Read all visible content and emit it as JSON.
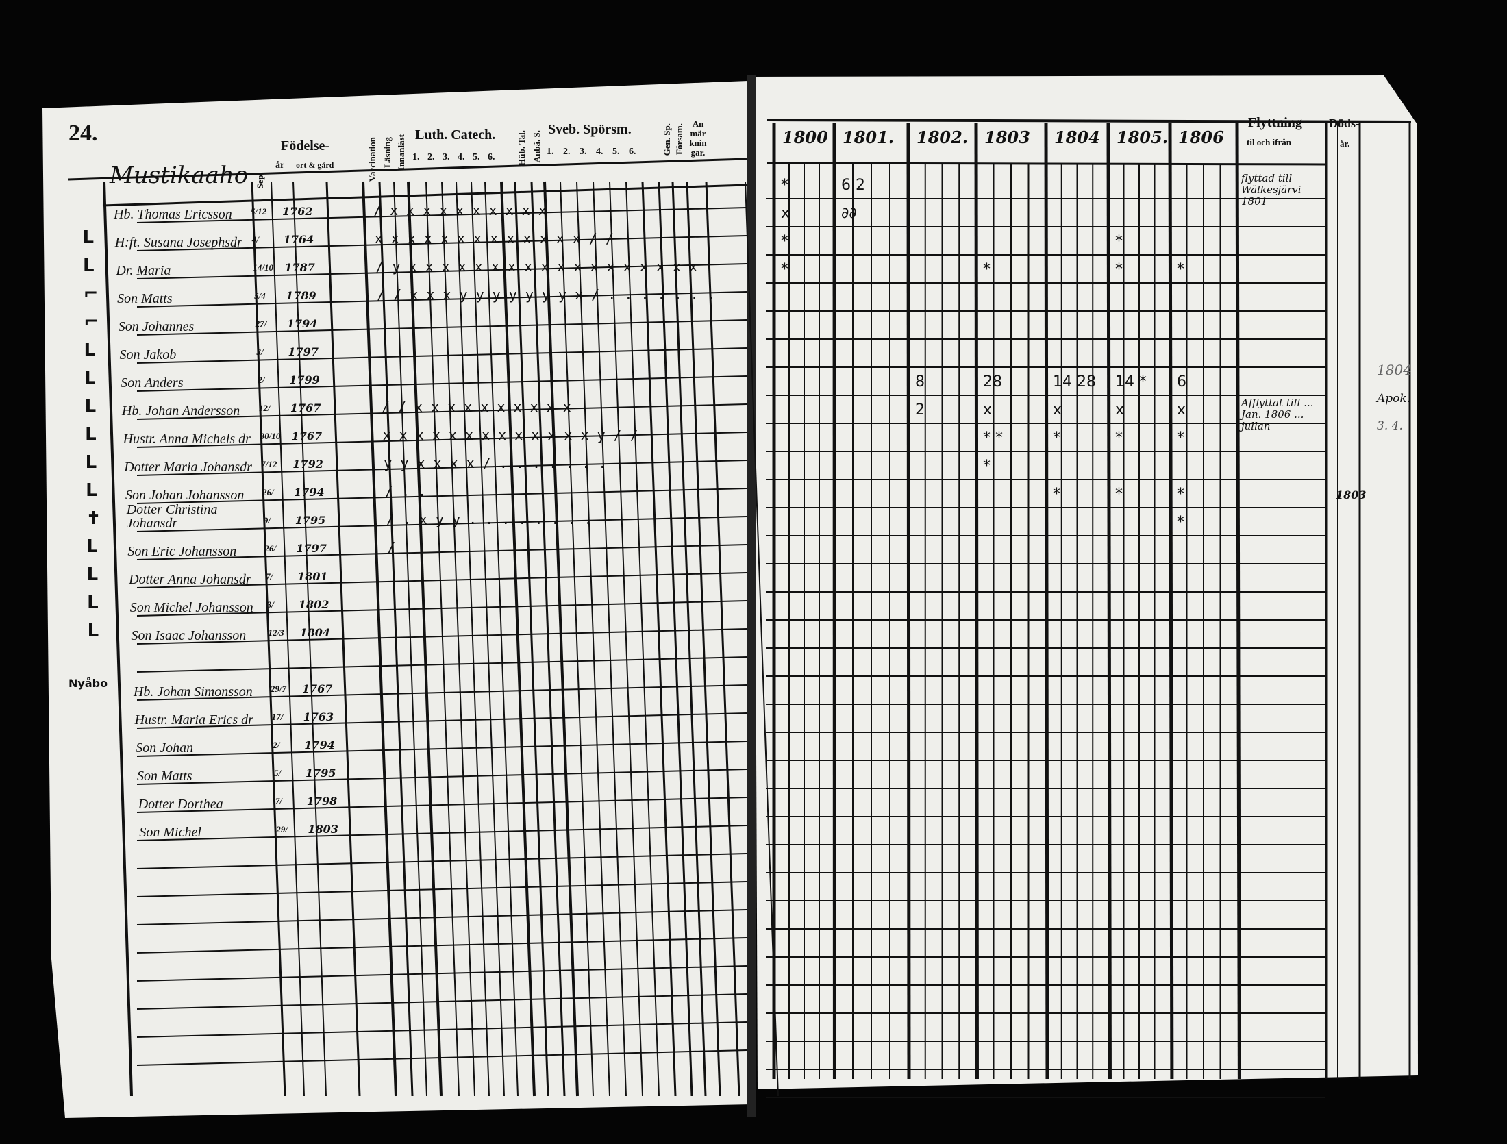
{
  "left_page": {
    "page_number": "24.",
    "farm_name": "Mustikaaho",
    "headers": {
      "birth": "Födelse-",
      "year": "år",
      "place": "ort & gård",
      "sep": "Sep.",
      "vertical": [
        "Vaccination",
        "Läsning",
        "Innanläst"
      ],
      "luth_catech": "Luth. Catech.",
      "luth_numbers": [
        "1.",
        "2.",
        "3.",
        "4.",
        "5.",
        "6."
      ],
      "vertical_mid": [
        "Hüb. Tal.",
        "Anbä. S."
      ],
      "sveb_sporsm": "Sveb. Spörsm.",
      "sveb_numbers": [
        "1.",
        "2.",
        "3.",
        "4.",
        "5.",
        "6."
      ],
      "vertical_end": [
        "Gen. Sp.",
        "Försam."
      ],
      "remarks": "Anmärkningar."
    },
    "rows": [
      {
        "row": 0,
        "margin": "",
        "name": "Hb. Thomas Ericsson",
        "day": "5/12",
        "year": "1762",
        "marks": "/ x x x x x x x x x x"
      },
      {
        "row": 1,
        "margin": "L",
        "name": "H:ft. Susana Josephsdr",
        "day": "4/",
        "year": "1764",
        "marks": "x x x x x x x x x x x x x / /"
      },
      {
        "row": 2,
        "margin": "L",
        "name": "Dr. Maria",
        "day": "14/10",
        "year": "1787",
        "marks": "/ y x x x x x x x x x x x x x x x x x x"
      },
      {
        "row": 3,
        "margin": "⌐",
        "name": "Son Matts",
        "day": "5/4",
        "year": "1789",
        "marks": "/ / x x x y y y y y y y x / . . . . . . ."
      },
      {
        "row": 4,
        "margin": "⌐",
        "name": "Son Johannes",
        "day": "27/",
        "year": "1794",
        "marks": ""
      },
      {
        "row": 5,
        "margin": "L",
        "name": "Son Jakob",
        "day": "3/",
        "year": "1797",
        "marks": ""
      },
      {
        "row": 6,
        "margin": "L",
        "name": "Son Anders",
        "day": "2/",
        "year": "1799",
        "marks": ""
      },
      {
        "row": 7,
        "margin": "L",
        "name": "Hb. Johan Andersson",
        "day": "12/",
        "year": "1767",
        "marks": "/ / x x x x x x x x x x"
      },
      {
        "row": 8,
        "margin": "L",
        "name": "Hustr. Anna Michels dr",
        "day": "30/10",
        "year": "1767",
        "marks": "x x x x x x x x x x x x x y / /"
      },
      {
        "row": 9,
        "margin": "L",
        "name": "Dotter Maria Johansdr",
        "day": "7/12",
        "year": "1792",
        "marks": "y y x x x x / . . . . . . ."
      },
      {
        "row": 10,
        "margin": "L",
        "name": "Son Johan Johansson",
        "day": "26/",
        "year": "1794",
        "marks": "/ . ."
      },
      {
        "row": 11,
        "margin": "✝",
        "name": "Dotter Christina Johansdr",
        "day": "9/",
        "year": "1795",
        "marks": "/ .   x y y . . . . . . . ."
      },
      {
        "row": 12,
        "margin": "L",
        "name": "Son Eric Johansson",
        "day": "26/",
        "year": "1797",
        "marks": "/"
      },
      {
        "row": 13,
        "margin": "L",
        "name": "Dotter Anna Johansdr",
        "day": "7/",
        "year": "1801",
        "marks": ""
      },
      {
        "row": 14,
        "margin": "L",
        "name": "Son Michel Johansson",
        "day": "3/",
        "year": "1802",
        "marks": ""
      },
      {
        "row": 15,
        "margin": "L",
        "name": "Son Isaac Johansson",
        "day": "12/3",
        "year": "1804",
        "marks": ""
      },
      {
        "row": 17,
        "margin": "Nyåbo",
        "name": "Hb. Johan Simonsson",
        "day": "29/7",
        "year": "1767",
        "marks": ""
      },
      {
        "row": 18,
        "margin": "",
        "name": "Hustr. Maria Erics dr",
        "day": "17/",
        "year": "1763",
        "marks": ""
      },
      {
        "row": 19,
        "margin": "",
        "name": "Son Johan",
        "day": "2/",
        "year": "1794",
        "marks": ""
      },
      {
        "row": 20,
        "margin": "",
        "name": "Son Matts",
        "day": "5/",
        "year": "1795",
        "marks": ""
      },
      {
        "row": 21,
        "margin": "",
        "name": "Dotter Dorthea",
        "day": "7/",
        "year": "1798",
        "marks": ""
      },
      {
        "row": 22,
        "margin": "",
        "name": "Son Michel",
        "day": "29/",
        "year": "1803",
        "marks": ""
      }
    ]
  },
  "right_page": {
    "years": [
      "1800",
      "1801.",
      "1802.",
      "1803",
      "1804",
      "1805.",
      "1806"
    ],
    "moving_header": "Flyttning",
    "moving_sub": "til och ifrån",
    "death_header": "Döds-",
    "death_sub": "år.",
    "notes": [
      {
        "row": 0,
        "text": "flyttad till Wälkesjärvi 1801"
      },
      {
        "row": 8,
        "text": "Afflyttat till ... Jan. 1806 ... jullan"
      }
    ],
    "death_entries": [
      {
        "row": 11,
        "text": "1803"
      }
    ],
    "outer_margin": [
      "1804",
      "Apok.",
      "3. 4."
    ],
    "marks": [
      {
        "row": 0,
        "year": 0,
        "text": "*"
      },
      {
        "row": 0,
        "year": 1,
        "text": "6 2"
      },
      {
        "row": 1,
        "year": 0,
        "text": "x"
      },
      {
        "row": 1,
        "year": 1,
        "text": "∂∂"
      },
      {
        "row": 2,
        "year": 0,
        "text": "*"
      },
      {
        "row": 2,
        "year": 5,
        "text": "*"
      },
      {
        "row": 3,
        "year": 0,
        "text": "*"
      },
      {
        "row": 3,
        "year": 3,
        "text": "*"
      },
      {
        "row": 3,
        "year": 5,
        "text": "*"
      },
      {
        "row": 3,
        "year": 6,
        "text": "*"
      },
      {
        "row": 7,
        "year": 2,
        "text": "8"
      },
      {
        "row": 7,
        "year": 3,
        "text": "28"
      },
      {
        "row": 7,
        "year": 4,
        "text": "14 28"
      },
      {
        "row": 7,
        "year": 5,
        "text": "14 *"
      },
      {
        "row": 7,
        "year": 6,
        "text": "6"
      },
      {
        "row": 8,
        "year": 2,
        "text": "2"
      },
      {
        "row": 8,
        "year": 3,
        "text": "x"
      },
      {
        "row": 8,
        "year": 4,
        "text": "x"
      },
      {
        "row": 8,
        "year": 5,
        "text": "x"
      },
      {
        "row": 8,
        "year": 6,
        "text": "x"
      },
      {
        "row": 9,
        "year": 3,
        "text": "* *"
      },
      {
        "row": 9,
        "year": 4,
        "text": "*"
      },
      {
        "row": 9,
        "year": 5,
        "text": "*"
      },
      {
        "row": 9,
        "year": 6,
        "text": "*"
      },
      {
        "row": 10,
        "year": 3,
        "text": "*"
      },
      {
        "row": 11,
        "year": 4,
        "text": "*"
      },
      {
        "row": 11,
        "year": 5,
        "text": "*"
      },
      {
        "row": 11,
        "year": 6,
        "text": "*"
      },
      {
        "row": 12,
        "year": 6,
        "text": "*"
      }
    ]
  }
}
